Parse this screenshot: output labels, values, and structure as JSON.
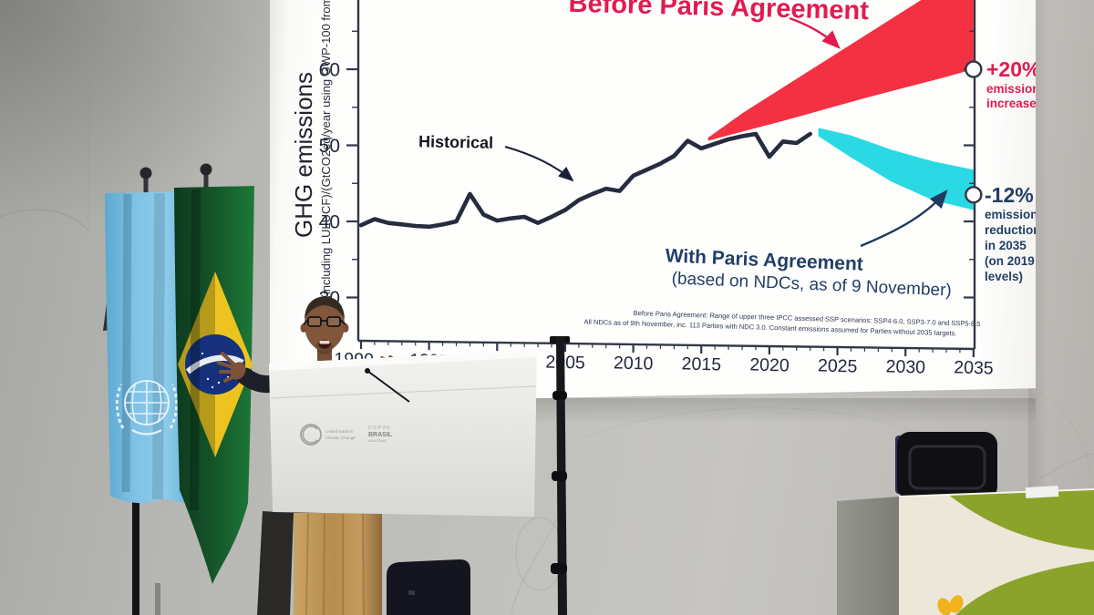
{
  "slide": {
    "colors": {
      "historical_line": "#262c3e",
      "axis": "#333848",
      "before_band": "#f43142",
      "with_band": "#2bd9e4",
      "red_text": "#e31a50",
      "navy_text": "#223f66",
      "tick_text": "#23283a"
    }
  },
  "chart_data": {
    "type": "line",
    "title": "",
    "y_axis": {
      "label": "GHG emissions",
      "sublabel": "(including LULUCF)/(GtCO2eq/year using GWP-100 from",
      "ticks": [
        30,
        40,
        50,
        60
      ],
      "minor_ticks": [
        35,
        45,
        55,
        65
      ],
      "range_shown": [
        24,
        69
      ]
    },
    "x_axis": {
      "range": [
        1990,
        2035
      ],
      "ticks": [
        1990,
        1995,
        2000,
        2005,
        2010,
        2015,
        2020,
        2025,
        2030,
        2035
      ],
      "minor_step": 1
    },
    "series": [
      {
        "name": "Historical",
        "type": "line",
        "color": "#262c3e",
        "x_start": 1990,
        "values": [
          39.5,
          40.3,
          39.8,
          39.6,
          39.4,
          39.3,
          39.6,
          40.0,
          43.6,
          40.9,
          40.1,
          40.4,
          40.6,
          39.8,
          40.6,
          41.5,
          42.8,
          43.6,
          44.3,
          44.0,
          46.0,
          46.8,
          47.6,
          48.6,
          50.6,
          49.6,
          50.2,
          50.8,
          51.2,
          51.5,
          48.5,
          50.5,
          50.3,
          51.5
        ]
      },
      {
        "name": "Before Paris Agreement",
        "type": "band",
        "color": "#f43142",
        "x": [
          2015.5,
          2018,
          2021,
          2024,
          2027,
          2030,
          2033,
          2035
        ],
        "lower": [
          50.6,
          51.8,
          53.2,
          54.7,
          56.2,
          57.6,
          59.0,
          60.0
        ],
        "upper": [
          51.0,
          54.2,
          57.6,
          61.0,
          64.4,
          67.8,
          71.2,
          73.5
        ],
        "end_marker": {
          "x": 2035,
          "y": 60.0
        }
      },
      {
        "name": "With Paris Agreement (based on NDCs, as of 9 November)",
        "type": "band",
        "color": "#2bd9e4",
        "x": [
          2023.6,
          2026,
          2029,
          2032,
          2035
        ],
        "lower": [
          51.2,
          48.4,
          45.2,
          42.8,
          41.5
        ],
        "upper": [
          52.3,
          51.3,
          49.4,
          47.9,
          46.8
        ],
        "end_marker": {
          "x": 2035,
          "y": 43.5
        }
      }
    ],
    "annotations": {
      "historical_label": "Historical",
      "before_paris_label": "Before Paris Agreement",
      "with_paris_label_line1": "With Paris Agreement",
      "with_paris_label_line2": "(based on NDCs, as of 9 November)",
      "increase_value": "+20%",
      "increase_lines": [
        "emissions",
        "increase"
      ],
      "reduction_value": "-12%",
      "reduction_lines": [
        "emissions",
        "reduction",
        "in 2035",
        "(on 2019",
        "levels)"
      ],
      "footnote_line1": "Before Paris Agreement: Range of upper three IPCC assessed SSP scenarios: SSP4-6.0, SSP3-7.0 and SSP5-8.5",
      "footnote_line2": "All NDCs as of 9th November, inc. 113 Parties with NDC 3.0. Constant emissions assumed for Parties without 2035 targets."
    },
    "legend_position": "none",
    "grid": false
  },
  "scene": {
    "podium": {
      "unfccc_logo_line1": "United Nations",
      "unfccc_logo_line2": "Climate Change",
      "cop_logo_line1": "COP30",
      "cop_logo_line2": "BRASIL",
      "cop_logo_line3": "AMAZÔNIA"
    },
    "flags": {
      "brazil_motto": "ORDEM E PROGRESSO"
    }
  }
}
